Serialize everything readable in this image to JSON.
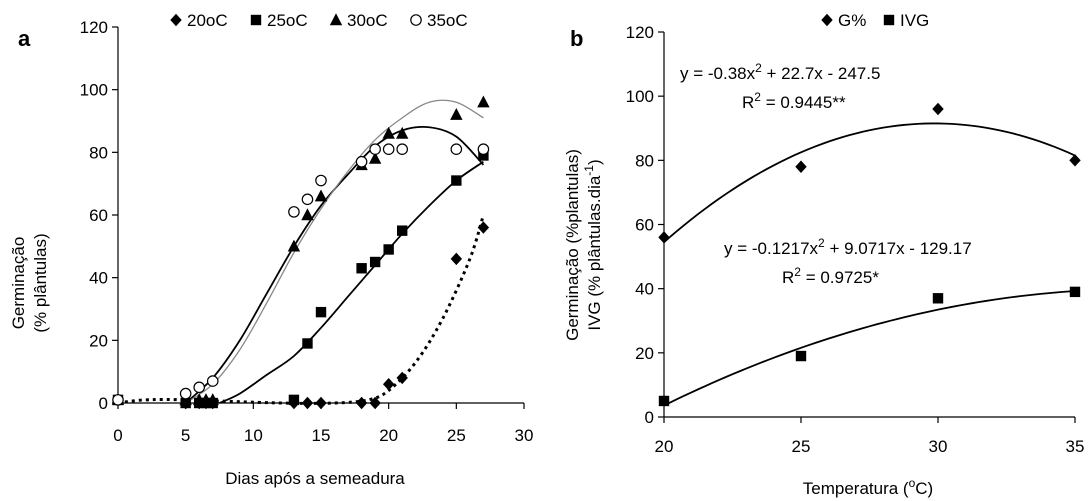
{
  "chart_data": [
    {
      "panel": "a",
      "type": "scatter",
      "xlabel": "Dias após a semeadura",
      "ylabel_lines": [
        "Germinação",
        "(% plântulas)"
      ],
      "xlim": [
        0,
        30
      ],
      "ylim": [
        0,
        120
      ],
      "xticks": [
        0,
        5,
        10,
        15,
        20,
        25,
        30
      ],
      "yticks": [
        0,
        20,
        40,
        60,
        80,
        100,
        120
      ],
      "grid": false,
      "legend_position": "top",
      "series": [
        {
          "name": "20oC",
          "marker": "diamond",
          "points": [
            [
              0,
              1
            ],
            [
              5,
              0
            ],
            [
              6,
              0
            ],
            [
              6.5,
              0
            ],
            [
              7,
              0
            ],
            [
              13,
              0
            ],
            [
              14,
              0
            ],
            [
              15,
              0
            ],
            [
              18,
              0
            ],
            [
              19,
              0
            ],
            [
              20,
              6
            ],
            [
              21,
              8
            ],
            [
              25,
              46
            ],
            [
              27,
              56
            ]
          ],
          "fit": {
            "style": "dotted",
            "points": [
              [
                0,
                0
              ],
              [
                2,
                1
              ],
              [
                5,
                1
              ],
              [
                12,
                0
              ],
              [
                16,
                0
              ],
              [
                18.5,
                1
              ],
              [
                20,
                4
              ],
              [
                22,
                13
              ],
              [
                24,
                27
              ],
              [
                26,
                46
              ],
              [
                27,
                60
              ]
            ]
          }
        },
        {
          "name": "25oC",
          "marker": "square",
          "points": [
            [
              0,
              1
            ],
            [
              5,
              0
            ],
            [
              6,
              0
            ],
            [
              6.5,
              0
            ],
            [
              7,
              0
            ],
            [
              13,
              1
            ],
            [
              14,
              19
            ],
            [
              15,
              29
            ],
            [
              18,
              43
            ],
            [
              19,
              45
            ],
            [
              20,
              49
            ],
            [
              21,
              55
            ],
            [
              25,
              71
            ],
            [
              27,
              79
            ]
          ],
          "fit": {
            "style": "solid",
            "points": [
              [
                7.5,
                0
              ],
              [
                9,
                3
              ],
              [
                11,
                9
              ],
              [
                13,
                15
              ],
              [
                15,
                24
              ],
              [
                17,
                34
              ],
              [
                19,
                44
              ],
              [
                21,
                54
              ],
              [
                23,
                63
              ],
              [
                25,
                71
              ],
              [
                27,
                77
              ]
            ]
          }
        },
        {
          "name": "30oC",
          "marker": "triangle",
          "points": [
            [
              0,
              1
            ],
            [
              5,
              1
            ],
            [
              6,
              1
            ],
            [
              6.5,
              1
            ],
            [
              7,
              1
            ],
            [
              13,
              50
            ],
            [
              14,
              60
            ],
            [
              15,
              66
            ],
            [
              18,
              76
            ],
            [
              19,
              78
            ],
            [
              20,
              86
            ],
            [
              21,
              86
            ],
            [
              25,
              92
            ],
            [
              27,
              96
            ]
          ],
          "fit": {
            "style": "solid",
            "points": [
              [
                5,
                0
              ],
              [
                7,
                8
              ],
              [
                9,
                20
              ],
              [
                11,
                35
              ],
              [
                13,
                50
              ],
              [
                15,
                63
              ],
              [
                17,
                73
              ],
              [
                19,
                82
              ],
              [
                21,
                87
              ],
              [
                23,
                88
              ],
              [
                25,
                85
              ],
              [
                27,
                76
              ]
            ]
          }
        },
        {
          "name": "35oC",
          "marker": "circle-open",
          "points": [
            [
              0,
              1
            ],
            [
              5,
              3
            ],
            [
              6,
              5
            ],
            [
              7,
              7
            ],
            [
              13,
              61
            ],
            [
              14,
              65
            ],
            [
              15,
              71
            ],
            [
              18,
              77
            ],
            [
              19,
              81
            ],
            [
              20,
              81
            ],
            [
              21,
              81
            ],
            [
              25,
              81
            ],
            [
              27,
              81
            ]
          ],
          "fit": {
            "style": "solid-grey",
            "points": [
              [
                5,
                0
              ],
              [
                7,
                6
              ],
              [
                9,
                17
              ],
              [
                11,
                32
              ],
              [
                13,
                48
              ],
              [
                15,
                62
              ],
              [
                17,
                74
              ],
              [
                19,
                84
              ],
              [
                21,
                91
              ],
              [
                23,
                96
              ],
              [
                25,
                96
              ],
              [
                27,
                91
              ]
            ]
          }
        }
      ]
    },
    {
      "panel": "b",
      "type": "scatter",
      "xlabel": "Temperatura (°C)",
      "ylabel_lines": [
        "Germinação (%plantulas)",
        "IVG (% plântulas.dia-1)"
      ],
      "xlim": [
        20,
        35
      ],
      "ylim": [
        0,
        120
      ],
      "xticks": [
        20,
        25,
        30,
        35
      ],
      "yticks": [
        0,
        20,
        40,
        60,
        80,
        100,
        120
      ],
      "grid": false,
      "legend_position": "top",
      "series": [
        {
          "name": "G%",
          "marker": "diamond",
          "points": [
            [
              20,
              56
            ],
            [
              25,
              78
            ],
            [
              30,
              96
            ],
            [
              35,
              80
            ]
          ],
          "fit": {
            "style": "solid",
            "a": -0.38,
            "b": 22.7,
            "c": -247.5
          },
          "equation": "y = -0.38x² + 22.7x - 247.5",
          "r2": "R² = 0.9445**"
        },
        {
          "name": "IVG",
          "marker": "square",
          "points": [
            [
              20,
              5
            ],
            [
              25,
              19
            ],
            [
              30,
              37
            ],
            [
              35,
              39
            ]
          ],
          "fit": {
            "style": "solid",
            "a": -0.1217,
            "b": 9.0717,
            "c": -129.17
          },
          "equation": "y = -0.1217x² + 9.0717x - 129.17",
          "r2": "R² = 0.9725*"
        }
      ]
    }
  ],
  "labels": {
    "panel_a": "a",
    "panel_b": "b",
    "a_xlabel": "Dias após a semeadura",
    "a_ylabel_1": "Germinação",
    "a_ylabel_2": "(% plântulas)",
    "b_xlabel_pre": "Temperatura (",
    "b_xlabel_sup": "o",
    "b_xlabel_post": "C)",
    "b_ylabel_1": "Germinação (%plantulas)",
    "b_ylabel_2_pre": "IVG (% plântulas.dia",
    "b_ylabel_2_sup": "-1",
    "b_ylabel_2_post": ")",
    "eq1": "y = -0.38x",
    "eq1_rest": " + 22.7x - 247.5",
    "r1_pre": "R",
    "r1_post": " = 0.9445**",
    "eq2": "y = -0.1217x",
    "eq2_rest": " + 9.0717x - 129.17",
    "r2_pre": "R",
    "r2_post": " = 0.9725*",
    "sup2": "2"
  },
  "legend_a": [
    "20oC",
    "25oC",
    "30oC",
    "35oC"
  ],
  "legend_b": [
    "G%",
    "IVG"
  ]
}
